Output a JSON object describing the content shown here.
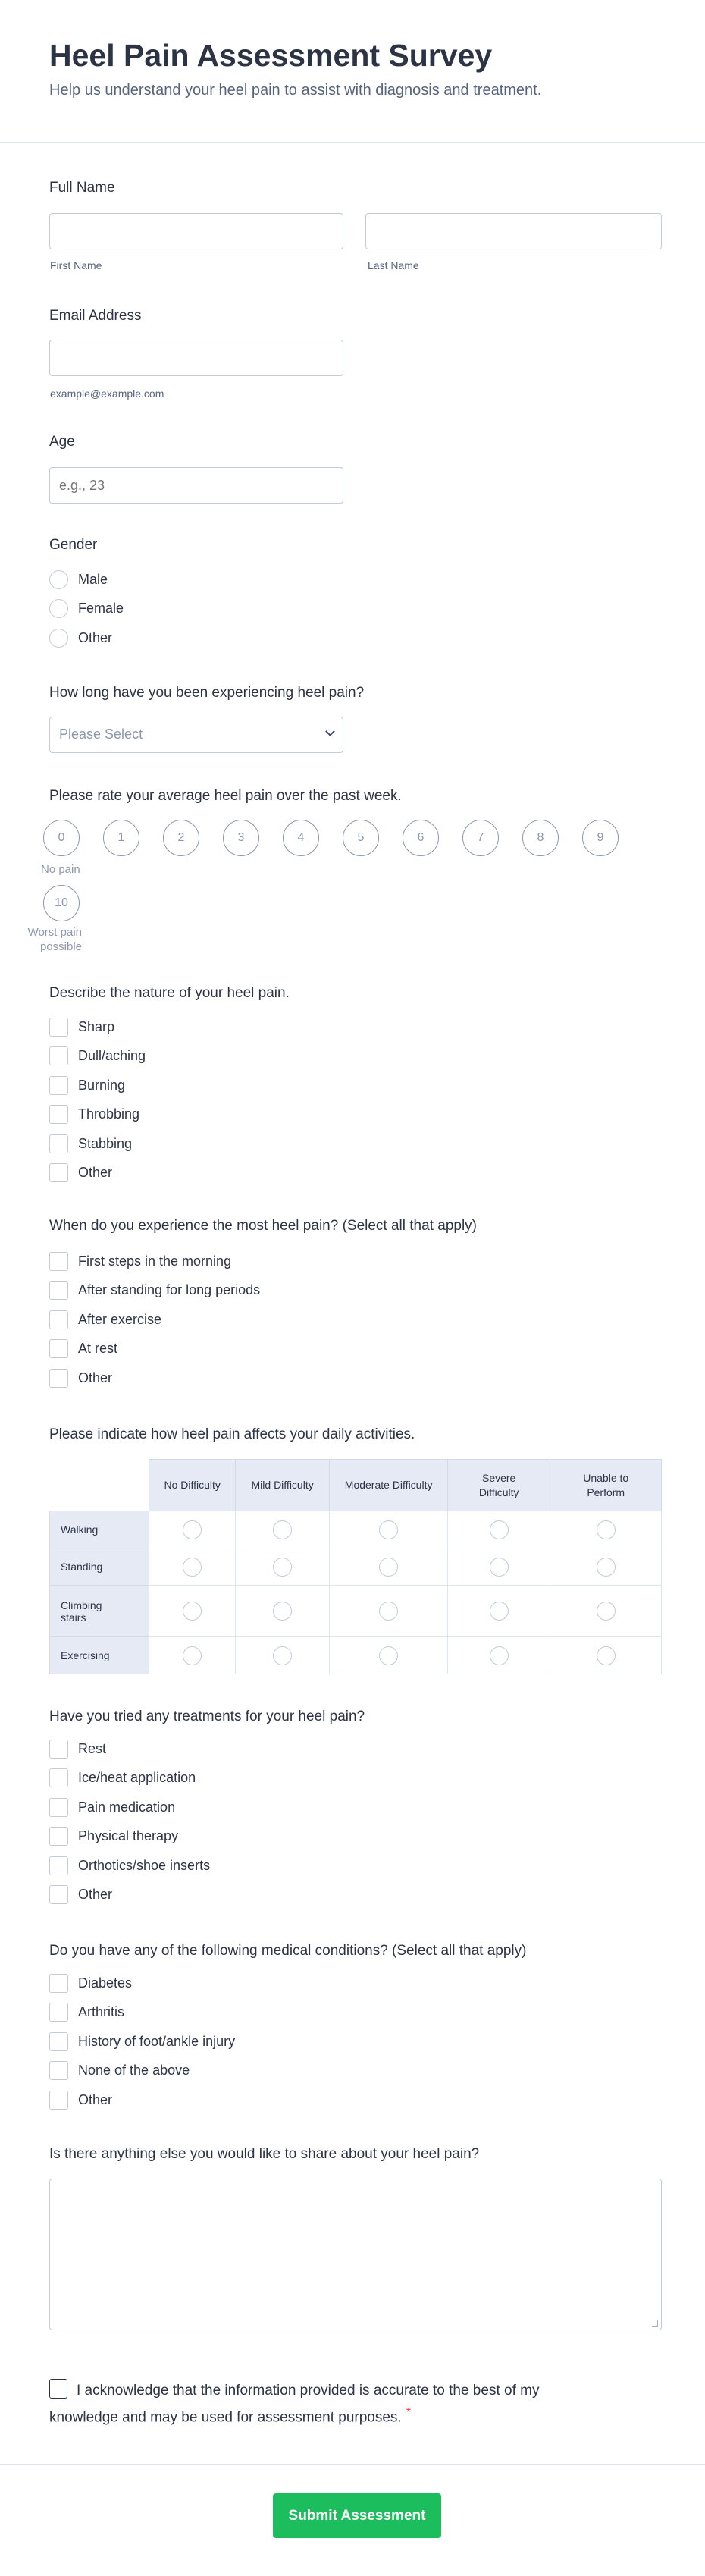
{
  "header": {
    "title": "Heel Pain Assessment Survey",
    "subtitle": "Help us understand your heel pain to assist with diagnosis and treatment."
  },
  "full_name": {
    "label": "Full Name",
    "first_sublabel": "First Name",
    "last_sublabel": "Last Name",
    "first_value": "",
    "last_value": ""
  },
  "email": {
    "label": "Email Address",
    "sublabel": "example@example.com",
    "value": ""
  },
  "age": {
    "label": "Age",
    "placeholder": "e.g., 23"
  },
  "gender": {
    "label": "Gender",
    "options": [
      "Male",
      "Female",
      "Other"
    ]
  },
  "duration": {
    "label": "How long have you been experiencing heel pain?",
    "selected": "Please Select"
  },
  "rating": {
    "label": "Please rate your average heel pain over the past week.",
    "values": [
      "0",
      "1",
      "2",
      "3",
      "4",
      "5",
      "6",
      "7",
      "8",
      "9",
      "10"
    ],
    "min_label": "No pain",
    "max_label": "Worst pain possible"
  },
  "nature": {
    "label": "Describe the nature of your heel pain.",
    "options": [
      "Sharp",
      "Dull/aching",
      "Burning",
      "Throbbing",
      "Stabbing",
      "Other"
    ]
  },
  "when": {
    "label": "When do you experience the most heel pain? (Select all that apply)",
    "options": [
      "First steps in the morning",
      "After standing for long periods",
      "After exercise",
      "At rest",
      "Other"
    ]
  },
  "daily": {
    "label": "Please indicate how heel pain affects your daily activities.",
    "columns": [
      "No Difficulty",
      "Mild Difficulty",
      "Moderate Difficulty",
      "Severe Difficulty",
      "Unable to Perform"
    ],
    "rows": [
      "Walking",
      "Standing",
      "Climbing stairs",
      "Exercising"
    ]
  },
  "treatments": {
    "label": "Have you tried any treatments for your heel pain?",
    "options": [
      "Rest",
      "Ice/heat application",
      "Pain medication",
      "Physical therapy",
      "Orthotics/shoe inserts",
      "Other"
    ]
  },
  "conditions": {
    "label": "Do you have any of the following medical conditions? (Select all that apply)",
    "options": [
      "Diabetes",
      "Arthritis",
      "History of foot/ankle injury",
      "None of the above",
      "Other"
    ]
  },
  "comments": {
    "label": "Is there anything else you would like to share about your heel pain?",
    "value": ""
  },
  "acknowledge": {
    "text": "I acknowledge that the information provided is accurate to the best of my knowledge and may be used for assessment purposes.",
    "required_mark": "*"
  },
  "submit": {
    "label": "Submit Assessment",
    "color": "#1cbd5c"
  }
}
